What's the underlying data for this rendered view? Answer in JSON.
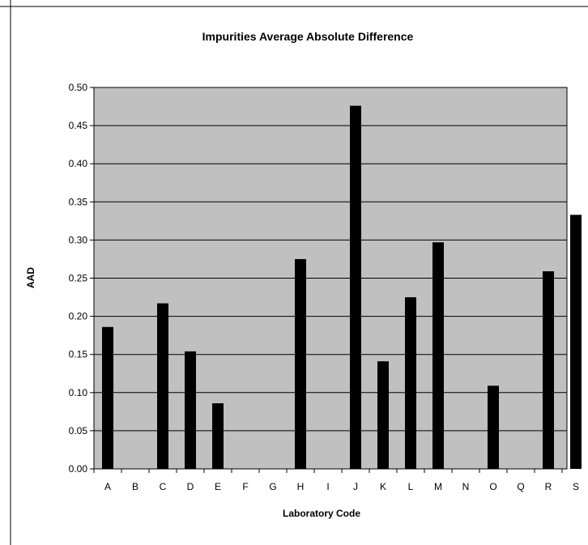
{
  "chart_data": {
    "type": "bar",
    "title": "Impurities Average Absolute Difference",
    "xlabel": "Laboratory Code",
    "ylabel": "AAD",
    "ylim": [
      0,
      0.5
    ],
    "yticks": [
      "0.00",
      "0.05",
      "0.10",
      "0.15",
      "0.20",
      "0.25",
      "0.30",
      "0.35",
      "0.40",
      "0.45",
      "0.50"
    ],
    "categories": [
      "A",
      "B",
      "C",
      "D",
      "E",
      "F",
      "G",
      "H",
      "I",
      "J",
      "K",
      "L",
      "M",
      "N",
      "O",
      "Q",
      "R",
      "S"
    ],
    "values": [
      0.186,
      null,
      0.217,
      0.154,
      0.086,
      null,
      null,
      0.275,
      null,
      0.476,
      0.141,
      0.225,
      0.297,
      null,
      0.109,
      null,
      0.259,
      0.333
    ],
    "grid": true,
    "plot_background": "#c0c0c0",
    "bar_color": "#000000"
  }
}
